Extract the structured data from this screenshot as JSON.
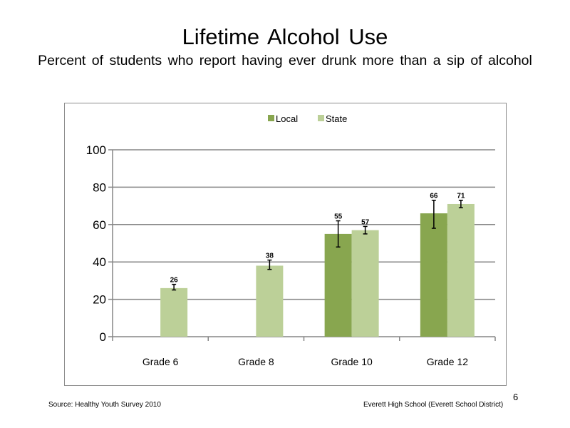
{
  "slide": {
    "title": "Lifetime Alcohol Use",
    "subtitle": "Percent of students who report having ever drunk more than a sip of alcohol",
    "source": "Source: Healthy Youth Survey 2010",
    "school": "Everett High School (Everett School District)",
    "page_number": "6"
  },
  "chart_data": {
    "type": "bar",
    "categories": [
      "Grade 6",
      "Grade 8",
      "Grade 10",
      "Grade 12"
    ],
    "series": [
      {
        "name": "Local",
        "color": "#88a64f",
        "values": [
          null,
          null,
          55,
          66
        ],
        "labels": [
          "",
          "",
          "55",
          "66"
        ],
        "error_low": [
          null,
          null,
          48,
          58
        ],
        "error_high": [
          null,
          null,
          62,
          73
        ]
      },
      {
        "name": "State",
        "color": "#bcd098",
        "values": [
          26,
          38,
          57,
          71
        ],
        "labels": [
          "26",
          "38",
          "57",
          "71"
        ],
        "error_low": [
          25,
          36,
          55,
          69
        ],
        "error_high": [
          28,
          41,
          59,
          73
        ]
      }
    ],
    "ylim": [
      0,
      100
    ],
    "yticks": [
      0,
      20,
      40,
      60,
      80,
      100
    ],
    "grid": true,
    "legend_position": "top-center"
  }
}
